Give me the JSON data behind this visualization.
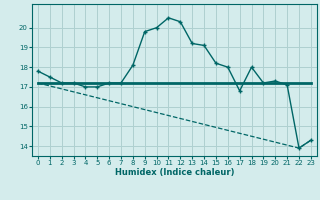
{
  "xlabel": "Humidex (Indice chaleur)",
  "line1_x": [
    0,
    1,
    2,
    3,
    4,
    5,
    6,
    7,
    8,
    9,
    10,
    11,
    12,
    13,
    14,
    15,
    16,
    17,
    18,
    19,
    20,
    21,
    22,
    23
  ],
  "line1_y": [
    17.8,
    17.5,
    17.2,
    17.2,
    17.0,
    17.0,
    17.2,
    17.2,
    18.1,
    19.8,
    20.0,
    20.5,
    20.3,
    19.2,
    19.1,
    18.2,
    18.0,
    16.8,
    18.0,
    17.2,
    17.3,
    17.1,
    13.9,
    14.3
  ],
  "line2_x": [
    0,
    23
  ],
  "line2_y": [
    17.2,
    17.2
  ],
  "line3_x": [
    0,
    22,
    23
  ],
  "line3_y": [
    17.2,
    13.9,
    14.3
  ],
  "bg_color": "#d4ecec",
  "grid_color": "#aed0d0",
  "line_color": "#006666",
  "xlim": [
    -0.5,
    23.5
  ],
  "ylim": [
    13.5,
    21.2
  ],
  "yticks": [
    14,
    15,
    16,
    17,
    18,
    19,
    20
  ],
  "xticks": [
    0,
    1,
    2,
    3,
    4,
    5,
    6,
    7,
    8,
    9,
    10,
    11,
    12,
    13,
    14,
    15,
    16,
    17,
    18,
    19,
    20,
    21,
    22,
    23
  ]
}
